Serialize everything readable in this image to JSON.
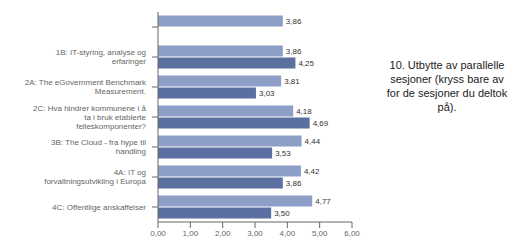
{
  "chart_data": {
    "type": "bar",
    "title": "10. Utbytte av parallelle\nsesjoner (kryss bare av\nfor de sesjoner du deltok\npå).",
    "orientation": "horizontal",
    "data_labels": true,
    "grid": false,
    "categories": [
      null,
      "1B: IT-styring, analyse og erfaringer",
      "2A: The eGovernment Benchmark Measurement.",
      "2C: Hva hindrer kommunene i å ta i bruk etablerte felleskomponenter?",
      "3B: The Cloud - fra hype til handling",
      "4A: IT og forvaltningsutvikling i Europa",
      "4C: Offentlige anskaffelser"
    ],
    "series": [
      {
        "color": "#8d9fc7",
        "values": [
          3.86,
          3.86,
          3.81,
          4.18,
          4.44,
          4.42,
          4.77
        ],
        "value_labels": [
          "3,86",
          "3,86",
          "3,81",
          "4,18",
          "4,44",
          "4,42",
          "4,77"
        ]
      },
      {
        "color": "#5b6fa0",
        "values": [
          null,
          4.25,
          3.03,
          4.69,
          3.53,
          3.86,
          3.5
        ],
        "value_labels": [
          null,
          "4,25",
          "3,03",
          "4,69",
          "3,53",
          "3,86",
          "3,50"
        ]
      }
    ],
    "xlim": [
      0,
      6.0
    ],
    "xticks": [
      {
        "value": 0.0,
        "label": "0,00"
      },
      {
        "value": 1.0,
        "label": "1,00"
      },
      {
        "value": 2.0,
        "label": "2,00"
      },
      {
        "value": 3.0,
        "label": "3,00"
      },
      {
        "value": 4.0,
        "label": "4,00"
      },
      {
        "value": 5.0,
        "label": "5,00"
      },
      {
        "value": 6.0,
        "label": "6,00"
      }
    ]
  }
}
